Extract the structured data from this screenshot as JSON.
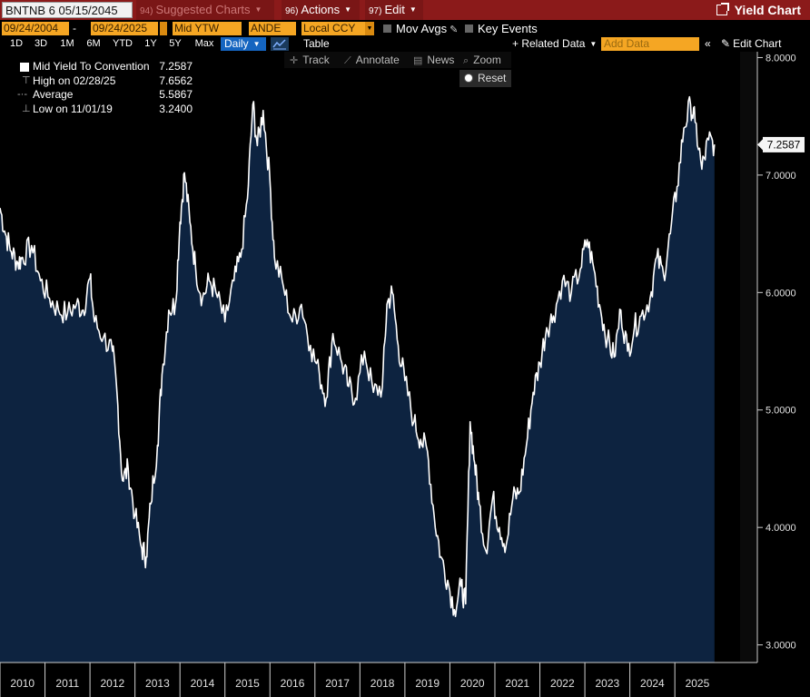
{
  "top_bar": {
    "ticker": "BNTNB 6 05/15/2045",
    "suggested_num": "94)",
    "suggested_label": "Suggested Charts",
    "actions_num": "96)",
    "actions_label": "Actions",
    "edit_num": "97)",
    "edit_label": "Edit",
    "title": "Yield Chart",
    "accent_color": "#8b1a1a"
  },
  "settings_bar": {
    "start_date": "09/24/2004",
    "date_separator": "-",
    "end_date": "09/24/2025",
    "field": "Mid YTW",
    "source": "ANDE",
    "currency": "Local CCY",
    "mov_avgs_label": "Mov Avgs",
    "key_events_label": "Key Events"
  },
  "range_bar": {
    "ranges": [
      "1D",
      "3D",
      "1M",
      "6M",
      "YTD",
      "1Y",
      "5Y",
      "Max"
    ],
    "frequency": "Daily",
    "table_label": "Table",
    "related_data_label": "+ Related Data",
    "add_data_placeholder": "Add Data",
    "collapse_label": "«",
    "edit_chart_label": "Edit Chart"
  },
  "toolbar": {
    "track": "Track",
    "annotate": "Annotate",
    "news": "News",
    "zoom": "Zoom",
    "reset": "Reset"
  },
  "legend": {
    "rows": [
      {
        "label": "Mid Yield To Convention",
        "value": "7.2587"
      },
      {
        "label": "High on 02/28/25",
        "value": "7.6562"
      },
      {
        "label": "Average",
        "value": "5.5867"
      },
      {
        "label": "Low on 11/01/19",
        "value": "3.2400"
      }
    ]
  },
  "chart_data": {
    "type": "area",
    "series": [
      {
        "name": "Mid Yield To Convention",
        "color": "#ffffff",
        "fill": "#0d2340"
      }
    ],
    "last_value_label": "7.2587",
    "y_ticks": [
      "8.0000",
      "7.0000",
      "6.0000",
      "5.0000",
      "4.0000",
      "3.0000"
    ],
    "ylim": [
      2.85,
      8.05
    ],
    "x_ticks": [
      "2010",
      "2011",
      "2012",
      "2013",
      "2014",
      "2015",
      "2016",
      "2017",
      "2018",
      "2019",
      "2020",
      "2021",
      "2022",
      "2023",
      "2024",
      "2025"
    ],
    "xlim": [
      2009.5,
      2025.95
    ],
    "points": [
      [
        2009.5,
        6.72
      ],
      [
        2009.62,
        6.5
      ],
      [
        2009.75,
        6.35
      ],
      [
        2009.9,
        6.25
      ],
      [
        2010.0,
        6.3
      ],
      [
        2010.2,
        6.4
      ],
      [
        2010.4,
        6.1
      ],
      [
        2010.6,
        5.95
      ],
      [
        2010.8,
        5.85
      ],
      [
        2011.0,
        5.82
      ],
      [
        2011.2,
        5.9
      ],
      [
        2011.35,
        5.85
      ],
      [
        2011.5,
        6.12
      ],
      [
        2011.6,
        5.75
      ],
      [
        2011.8,
        5.62
      ],
      [
        2012.0,
        5.5
      ],
      [
        2012.1,
        5.15
      ],
      [
        2012.22,
        4.4
      ],
      [
        2012.35,
        4.5
      ],
      [
        2012.5,
        4.1
      ],
      [
        2012.65,
        3.82
      ],
      [
        2012.75,
        3.75
      ],
      [
        2012.85,
        4.2
      ],
      [
        2013.0,
        4.7
      ],
      [
        2013.1,
        5.3
      ],
      [
        2013.25,
        5.85
      ],
      [
        2013.4,
        5.9
      ],
      [
        2013.5,
        6.6
      ],
      [
        2013.6,
        7.02
      ],
      [
        2013.72,
        6.6
      ],
      [
        2013.85,
        6.2
      ],
      [
        2014.0,
        5.95
      ],
      [
        2014.15,
        6.1
      ],
      [
        2014.3,
        6.0
      ],
      [
        2014.5,
        5.75
      ],
      [
        2014.7,
        6.1
      ],
      [
        2014.85,
        6.3
      ],
      [
        2015.0,
        6.8
      ],
      [
        2015.12,
        7.6
      ],
      [
        2015.22,
        7.25
      ],
      [
        2015.35,
        7.55
      ],
      [
        2015.5,
        6.95
      ],
      [
        2015.6,
        6.3
      ],
      [
        2015.8,
        6.05
      ],
      [
        2016.0,
        5.75
      ],
      [
        2016.2,
        5.9
      ],
      [
        2016.4,
        5.55
      ],
      [
        2016.6,
        5.3
      ],
      [
        2016.75,
        5.1
      ],
      [
        2016.9,
        5.65
      ],
      [
        2017.1,
        5.4
      ],
      [
        2017.25,
        5.2
      ],
      [
        2017.4,
        5.1
      ],
      [
        2017.6,
        5.5
      ],
      [
        2017.8,
        5.15
      ],
      [
        2018.0,
        5.2
      ],
      [
        2018.1,
        5.9
      ],
      [
        2018.22,
        6.0
      ],
      [
        2018.35,
        5.55
      ],
      [
        2018.5,
        5.25
      ],
      [
        2018.7,
        4.9
      ],
      [
        2018.85,
        4.75
      ],
      [
        2019.0,
        4.65
      ],
      [
        2019.15,
        4.1
      ],
      [
        2019.3,
        3.75
      ],
      [
        2019.45,
        3.55
      ],
      [
        2019.6,
        3.3
      ],
      [
        2019.75,
        3.5
      ],
      [
        2019.85,
        3.35
      ],
      [
        2019.95,
        4.9
      ],
      [
        2020.05,
        4.55
      ],
      [
        2020.15,
        4.2
      ],
      [
        2020.3,
        3.8
      ],
      [
        2020.45,
        4.25
      ],
      [
        2020.6,
        4.0
      ],
      [
        2020.75,
        3.85
      ],
      [
        2020.9,
        4.25
      ],
      [
        2021.05,
        4.3
      ],
      [
        2021.2,
        4.7
      ],
      [
        2021.35,
        5.15
      ],
      [
        2021.5,
        5.4
      ],
      [
        2021.65,
        5.7
      ],
      [
        2021.8,
        5.8
      ],
      [
        2022.0,
        6.1
      ],
      [
        2022.2,
        6.0
      ],
      [
        2022.4,
        6.2
      ],
      [
        2022.55,
        6.45
      ],
      [
        2022.7,
        6.2
      ],
      [
        2022.85,
        5.85
      ],
      [
        2023.0,
        5.6
      ],
      [
        2023.15,
        5.45
      ],
      [
        2023.3,
        5.85
      ],
      [
        2023.45,
        5.5
      ],
      [
        2023.6,
        5.7
      ],
      [
        2023.75,
        5.8
      ],
      [
        2023.95,
        5.95
      ],
      [
        2024.1,
        6.3
      ],
      [
        2024.25,
        6.15
      ],
      [
        2024.4,
        6.5
      ],
      [
        2024.55,
        6.9
      ],
      [
        2024.7,
        7.4
      ],
      [
        2024.85,
        7.6
      ],
      [
        2024.95,
        7.45
      ],
      [
        2025.1,
        7.05
      ],
      [
        2025.25,
        7.3
      ],
      [
        2025.38,
        7.26
      ]
    ]
  }
}
